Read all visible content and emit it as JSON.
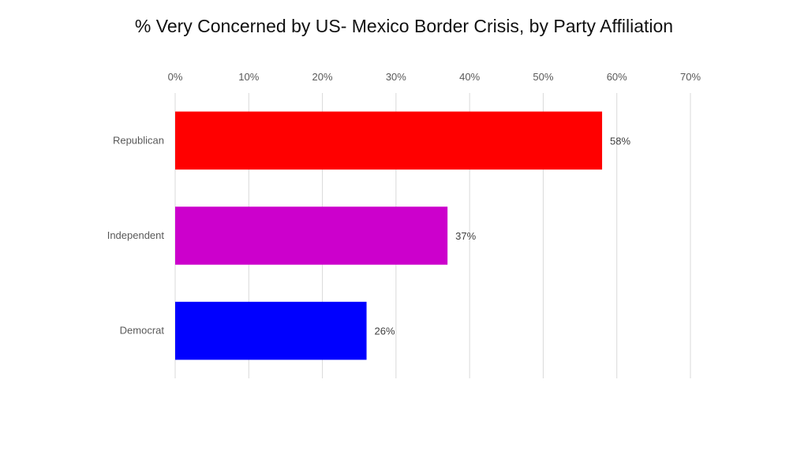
{
  "chart_data": {
    "type": "bar",
    "orientation": "horizontal",
    "title": "% Very Concerned  by US- Mexico Border Crisis, by Party Affiliation",
    "categories": [
      "Republican",
      "Independent",
      "Democrat"
    ],
    "values": [
      58,
      37,
      26
    ],
    "value_labels": [
      "58%",
      "37%",
      "26%"
    ],
    "colors": [
      "#ff0000",
      "#cc00cc",
      "#0000ff"
    ],
    "xlim": [
      0,
      70
    ],
    "xticks": [
      0,
      10,
      20,
      30,
      40,
      50,
      60,
      70
    ],
    "xtick_labels": [
      "0%",
      "10%",
      "20%",
      "30%",
      "40%",
      "50%",
      "60%",
      "70%"
    ],
    "xaxis_position": "top",
    "grid": true,
    "legend": "none"
  }
}
